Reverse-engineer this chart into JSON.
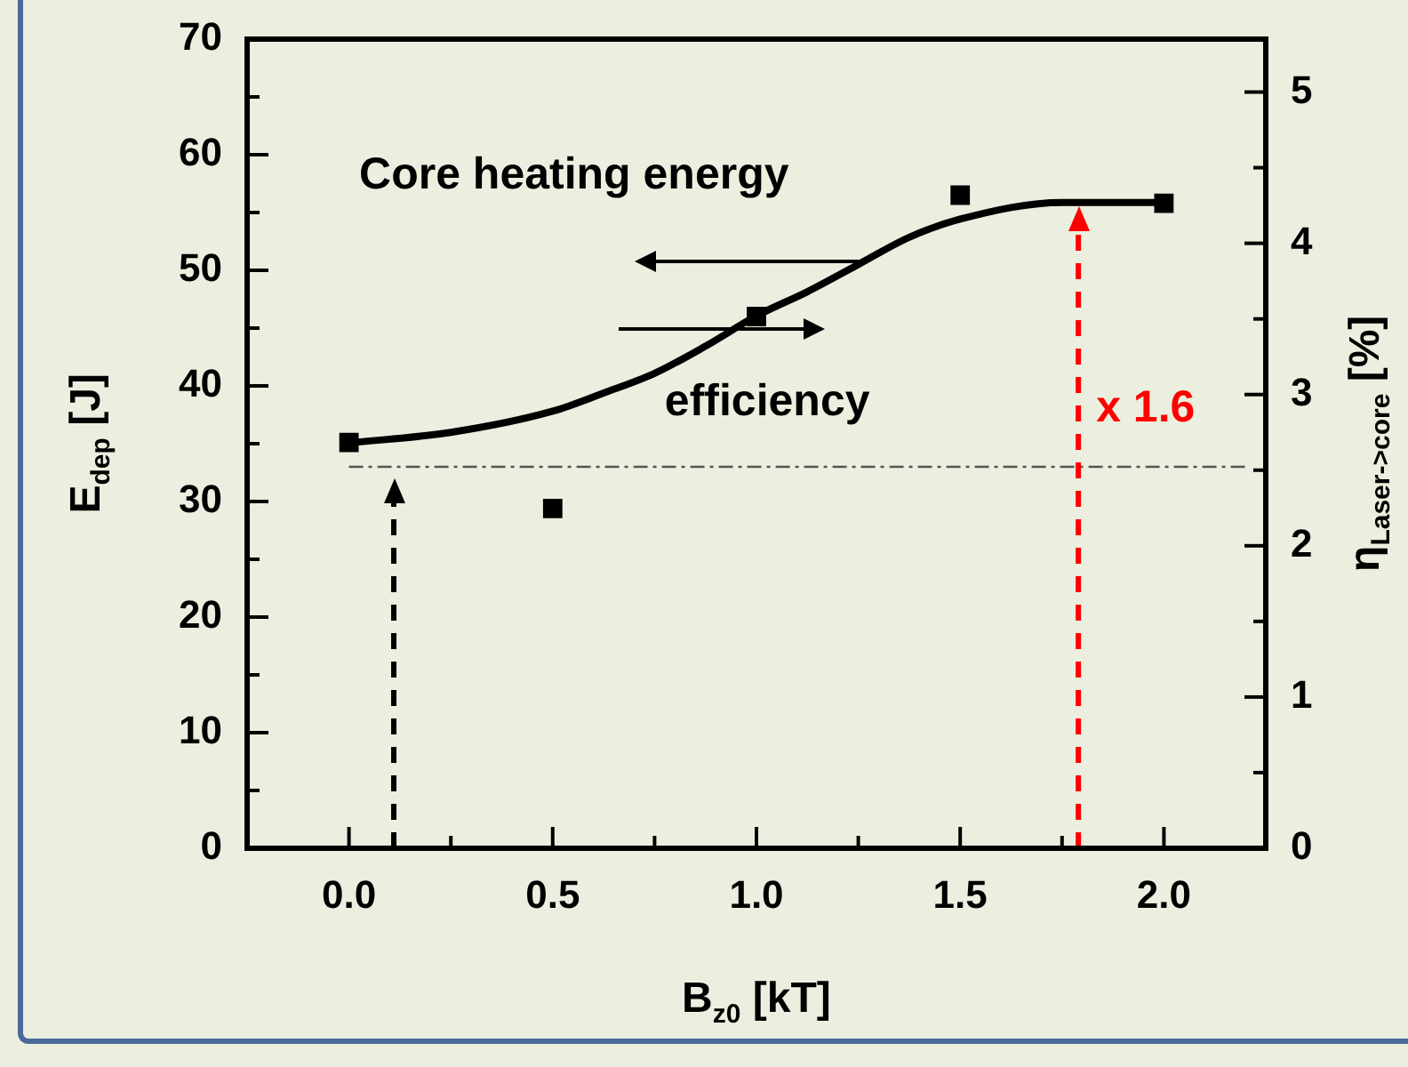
{
  "chart_data": {
    "type": "scatter",
    "xlabel": "B$_{z0}$ [kT]",
    "ylabel": "E$_{dep}$ [J]",
    "y2label": "η$_{Laser->core}$ [%]",
    "xlim": [
      -0.25,
      2.25
    ],
    "xticks": [
      {
        "value": 0,
        "label": "0.0"
      },
      {
        "value": 0.5,
        "label": "0.5"
      },
      {
        "value": 1,
        "label": "1.0"
      },
      {
        "value": 1.5,
        "label": "1.5"
      },
      {
        "value": 2,
        "label": "2.0"
      }
    ],
    "ylim": [
      0,
      70
    ],
    "yticks": [
      0,
      10,
      20,
      30,
      40,
      50,
      60,
      70
    ],
    "y2lim": [
      0,
      5.35
    ],
    "y2ticks": [
      0,
      1,
      2,
      3,
      4,
      5
    ],
    "grid": false,
    "legend": false,
    "marker": "square",
    "series": [
      {
        "color": "#000000",
        "x": [
          0,
          0.5,
          1,
          1.5,
          2
        ],
        "values": [
          35.1,
          29.4,
          46,
          56.5,
          55.8
        ]
      },
      {
        "type": "line",
        "axis": "y2",
        "color": "#000000",
        "marker": "none",
        "line_style": "solid",
        "x": [
          0,
          0.25,
          0.5,
          0.625,
          0.75,
          0.875,
          1,
          1.125,
          1.25,
          1.375,
          1.5,
          1.75,
          2
        ],
        "values": [
          2.68,
          2.75,
          2.89,
          3.01,
          3.14,
          3.32,
          3.52,
          3.68,
          3.86,
          4.04,
          4.16,
          4.27,
          4.27
        ]
      }
    ],
    "ref_lines": [
      {
        "axis": "y",
        "value": 33,
        "color": "#555555",
        "line_style": "dashdot"
      },
      {
        "axis": "x",
        "value": 0.11,
        "color": "#000000",
        "line_style": "dashed"
      },
      {
        "axis": "x",
        "value": 1.79,
        "color": "#ff0000",
        "line_style": "dashed"
      }
    ],
    "annotations": [
      "Core heating energy",
      "efficiency",
      {
        "text": "x 1.6",
        "x": 1.79,
        "y": 38
      }
    ]
  }
}
